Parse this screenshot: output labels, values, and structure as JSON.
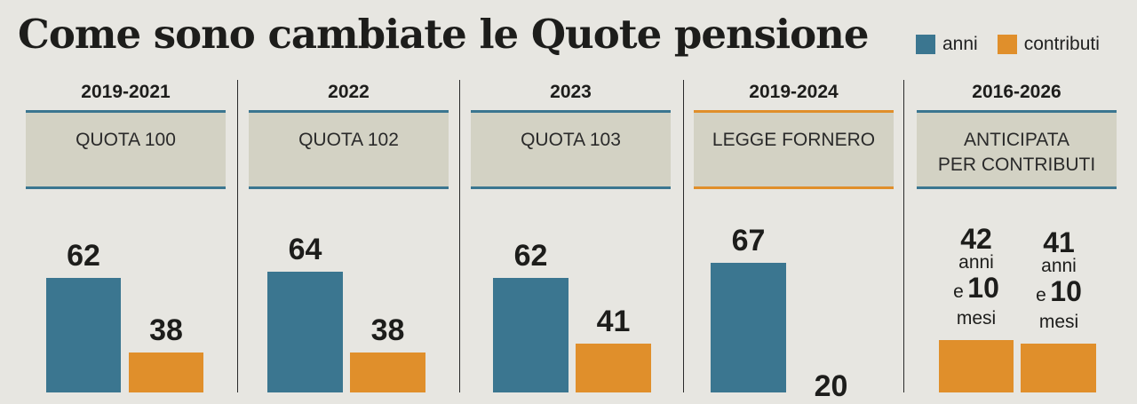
{
  "title": "Come sono cambiate le Quote pensione",
  "legend": {
    "anni": "anni",
    "contributi": "contributi",
    "anni_color": "#3b7690",
    "contributi_color": "#e08f2b"
  },
  "chart_data": {
    "type": "bar",
    "title": "Come sono cambiate le Quote pensione",
    "series_names": [
      "anni",
      "contributi"
    ],
    "panels": [
      {
        "period": "2019-2021",
        "label": "QUOTA 100",
        "anni": 62,
        "contributi": 38,
        "anni_label": "62",
        "contributi_label": "38"
      },
      {
        "period": "2022",
        "label": "QUOTA 102",
        "anni": 64,
        "contributi": 38,
        "anni_label": "64",
        "contributi_label": "38"
      },
      {
        "period": "2023",
        "label": "QUOTA 103",
        "anni": 62,
        "contributi": 41,
        "anni_label": "62",
        "contributi_label": "41"
      },
      {
        "period": "2019-2024",
        "label": "LEGGE FORNERO",
        "anni": 67,
        "contributi": 20,
        "anni_label": "67",
        "contributi_label": "20"
      },
      {
        "period": "2016-2026",
        "label_line1": "ANTICIPATA",
        "label_line2": "PER CONTRIBUTI",
        "bars": [
          {
            "years": 42,
            "months": 10,
            "value_years": "42",
            "unit_years": "anni",
            "conj": "e",
            "value_months": "10",
            "unit_months": "mesi"
          },
          {
            "years": 41,
            "months": 10,
            "value_years": "41",
            "unit_years": "anni",
            "conj": "e",
            "value_months": "10",
            "unit_months": "mesi"
          }
        ]
      }
    ]
  }
}
